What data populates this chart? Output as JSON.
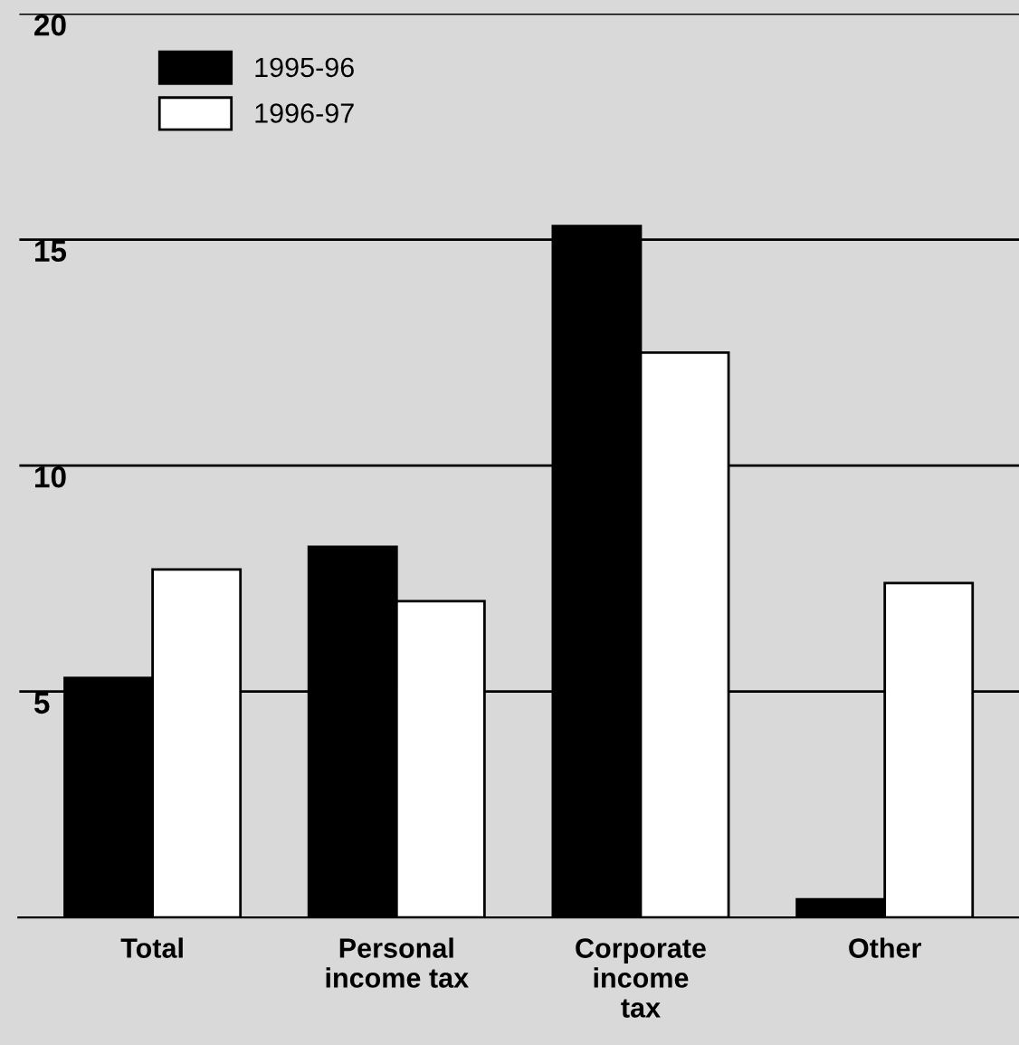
{
  "chart_data": {
    "type": "bar",
    "categories": [
      "Total",
      "Personal\nincome tax",
      "Corporate\nincome\ntax",
      "Other"
    ],
    "series": [
      {
        "name": "1995-96",
        "color": "#000000",
        "values": [
          5.3,
          8.2,
          15.3,
          0.4
        ]
      },
      {
        "name": "1996-97",
        "color": "#ffffff",
        "values": [
          7.7,
          7.0,
          12.5,
          7.4
        ]
      }
    ],
    "ylim": [
      0,
      20
    ],
    "yticks": [
      5,
      10,
      15,
      20
    ],
    "grid": "y",
    "legend": "top left"
  }
}
